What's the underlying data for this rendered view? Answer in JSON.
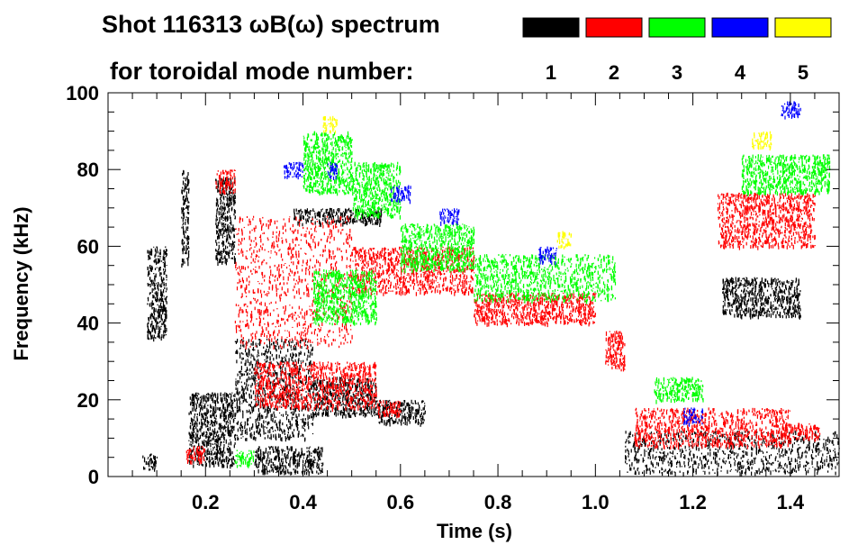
{
  "chart_data": {
    "type": "heatmap",
    "title": "Shot 116313 ωB(ω) spectrum",
    "legend_title": "for toroidal mode number:",
    "xlabel": "Time (s)",
    "ylabel": "Frequency (kHz)",
    "xlim": [
      0.0,
      1.5
    ],
    "ylim": [
      0,
      100
    ],
    "x_ticks": [
      {
        "value": 0.2,
        "label": "0.2"
      },
      {
        "value": 0.4,
        "label": "0.4"
      },
      {
        "value": 0.6,
        "label": "0.6"
      },
      {
        "value": 0.8,
        "label": "0.8"
      },
      {
        "value": 1.0,
        "label": "1.0"
      },
      {
        "value": 1.2,
        "label": "1.2"
      },
      {
        "value": 1.4,
        "label": "1.4"
      }
    ],
    "y_ticks": [
      {
        "value": 0,
        "label": "0"
      },
      {
        "value": 20,
        "label": "20"
      },
      {
        "value": 40,
        "label": "40"
      },
      {
        "value": 60,
        "label": "60"
      },
      {
        "value": 80,
        "label": "80"
      },
      {
        "value": 100,
        "label": "100"
      }
    ],
    "legend": [
      {
        "label": "1",
        "color": "#000000"
      },
      {
        "label": "2",
        "color": "#ff0000"
      },
      {
        "label": "3",
        "color": "#00ff00"
      },
      {
        "label": "4",
        "color": "#0000ff"
      },
      {
        "label": "5",
        "color": "#ffff00"
      }
    ],
    "series": [
      {
        "name": "n=1",
        "color": "#000000",
        "blobs": [
          {
            "x": [
              0.08,
              0.12
            ],
            "y": [
              36,
              60
            ]
          },
          {
            "x": [
              0.07,
              0.1
            ],
            "y": [
              2,
              6
            ]
          },
          {
            "x": [
              0.15,
              0.165
            ],
            "y": [
              55,
              80
            ]
          },
          {
            "x": [
              0.165,
              0.26
            ],
            "y": [
              3,
              22
            ]
          },
          {
            "x": [
              0.22,
              0.26
            ],
            "y": [
              56,
              78
            ]
          },
          {
            "x": [
              0.26,
              0.42
            ],
            "y": [
              10,
              36
            ]
          },
          {
            "x": [
              0.42,
              0.55
            ],
            "y": [
              16,
              26
            ]
          },
          {
            "x": [
              0.55,
              0.65
            ],
            "y": [
              14,
              20
            ]
          },
          {
            "x": [
              0.3,
              0.44
            ],
            "y": [
              1,
              8
            ]
          },
          {
            "x": [
              1.06,
              1.5
            ],
            "y": [
              1,
              12
            ]
          },
          {
            "x": [
              1.26,
              1.42
            ],
            "y": [
              42,
              52
            ]
          },
          {
            "x": [
              0.38,
              0.56
            ],
            "y": [
              66,
              70
            ]
          }
        ]
      },
      {
        "name": "n=2",
        "color": "#ff0000",
        "blobs": [
          {
            "x": [
              0.22,
              0.26
            ],
            "y": [
              74,
              80
            ]
          },
          {
            "x": [
              0.26,
              0.5
            ],
            "y": [
              34,
              68
            ]
          },
          {
            "x": [
              0.5,
              0.75
            ],
            "y": [
              48,
              60
            ]
          },
          {
            "x": [
              0.75,
              1.0
            ],
            "y": [
              40,
              48
            ]
          },
          {
            "x": [
              0.3,
              0.55
            ],
            "y": [
              18,
              30
            ]
          },
          {
            "x": [
              0.55,
              0.6
            ],
            "y": [
              16,
              20
            ]
          },
          {
            "x": [
              1.02,
              1.06
            ],
            "y": [
              28,
              38
            ]
          },
          {
            "x": [
              1.08,
              1.4
            ],
            "y": [
              8,
              18
            ]
          },
          {
            "x": [
              1.38,
              1.46
            ],
            "y": [
              10,
              14
            ]
          },
          {
            "x": [
              1.25,
              1.45
            ],
            "y": [
              60,
              74
            ]
          },
          {
            "x": [
              0.16,
              0.2
            ],
            "y": [
              4,
              8
            ]
          }
        ]
      },
      {
        "name": "n=3",
        "color": "#00ff00",
        "blobs": [
          {
            "x": [
              0.4,
              0.5
            ],
            "y": [
              74,
              90
            ]
          },
          {
            "x": [
              0.5,
              0.6
            ],
            "y": [
              68,
              82
            ]
          },
          {
            "x": [
              0.6,
              0.75
            ],
            "y": [
              54,
              66
            ]
          },
          {
            "x": [
              0.75,
              1.04
            ],
            "y": [
              46,
              58
            ]
          },
          {
            "x": [
              0.42,
              0.55
            ],
            "y": [
              40,
              54
            ]
          },
          {
            "x": [
              1.12,
              1.22
            ],
            "y": [
              20,
              26
            ]
          },
          {
            "x": [
              1.3,
              1.48
            ],
            "y": [
              74,
              84
            ]
          },
          {
            "x": [
              0.26,
              0.3
            ],
            "y": [
              3,
              7
            ]
          }
        ]
      },
      {
        "name": "n=4",
        "color": "#0000ff",
        "blobs": [
          {
            "x": [
              0.36,
              0.4
            ],
            "y": [
              78,
              82
            ]
          },
          {
            "x": [
              0.45,
              0.47
            ],
            "y": [
              78,
              82
            ]
          },
          {
            "x": [
              0.58,
              0.62
            ],
            "y": [
              72,
              76
            ]
          },
          {
            "x": [
              0.68,
              0.72
            ],
            "y": [
              66,
              70
            ]
          },
          {
            "x": [
              1.38,
              1.42
            ],
            "y": [
              94,
              98
            ]
          },
          {
            "x": [
              1.18,
              1.22
            ],
            "y": [
              14,
              18
            ]
          },
          {
            "x": [
              0.88,
              0.92
            ],
            "y": [
              56,
              60
            ]
          }
        ]
      },
      {
        "name": "n=5",
        "color": "#ffff00",
        "blobs": [
          {
            "x": [
              0.44,
              0.47
            ],
            "y": [
              90,
              94
            ]
          },
          {
            "x": [
              1.32,
              1.36
            ],
            "y": [
              86,
              90
            ]
          },
          {
            "x": [
              0.92,
              0.95
            ],
            "y": [
              60,
              64
            ]
          }
        ]
      }
    ]
  }
}
